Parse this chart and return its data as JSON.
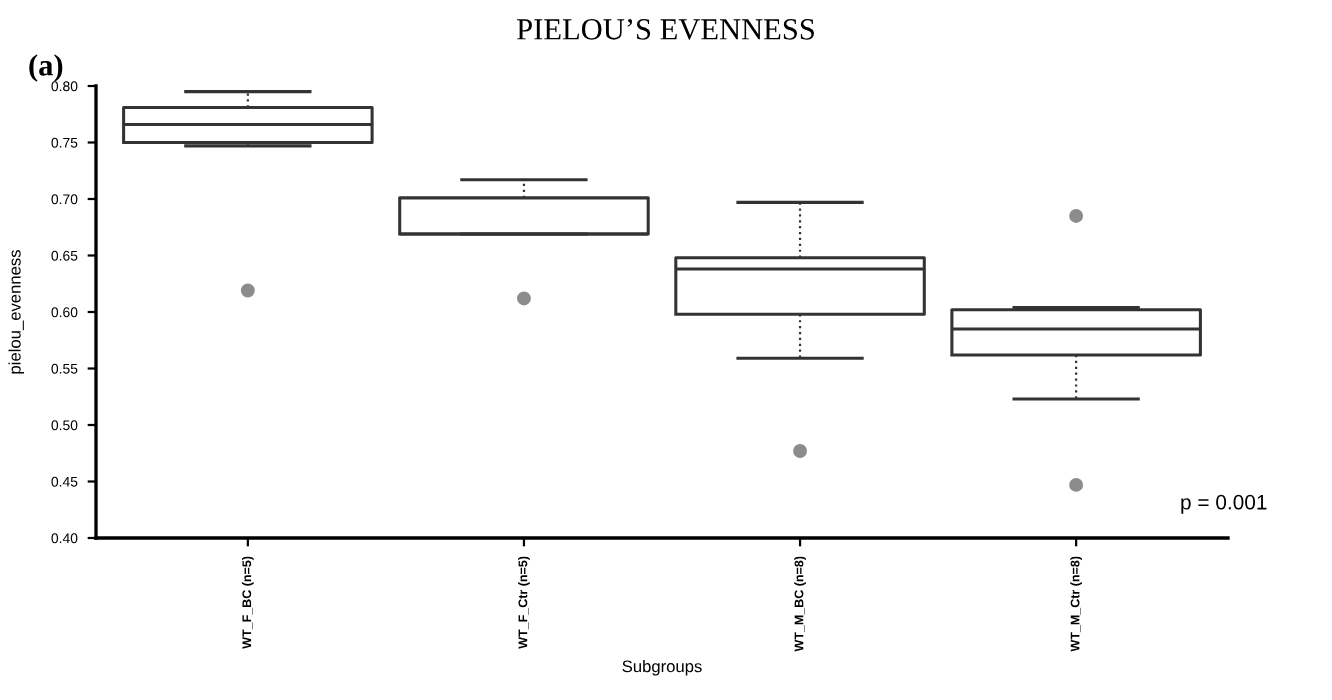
{
  "chart_data": {
    "type": "box",
    "title": "PIELOU’S EVENNESS",
    "xlabel": "Subgroups",
    "ylabel": "pielou_evenness",
    "categories": [
      "WT_F_BC (n=5)",
      "WT_F_Ctr (n=5)",
      "WT_M_BC (n=8)",
      "WT_M_Ctr (n=8)"
    ],
    "boxes": [
      {
        "low": 0.747,
        "q1": 0.75,
        "median": 0.766,
        "q3": 0.781,
        "high": 0.795,
        "outliers": [
          0.619
        ]
      },
      {
        "low": 0.669,
        "q1": 0.669,
        "median": 0.669,
        "q3": 0.701,
        "high": 0.717,
        "outliers": [
          0.612
        ]
      },
      {
        "low": 0.559,
        "q1": 0.598,
        "median": 0.638,
        "q3": 0.648,
        "high": 0.697,
        "outliers": [
          0.477
        ]
      },
      {
        "low": 0.523,
        "q1": 0.562,
        "median": 0.585,
        "q3": 0.602,
        "high": 0.604,
        "outliers": [
          0.685,
          0.447
        ]
      }
    ],
    "color": "#333333",
    "ylim": [
      0.4,
      0.8
    ],
    "yticks": [
      {
        "value": 0.4,
        "label": "0.40"
      },
      0.45,
      {
        "value": 0.5,
        "label": "0.50"
      },
      0.55,
      {
        "value": 0.6,
        "label": "0.60"
      },
      0.65,
      {
        "value": 0.7,
        "label": "0.70"
      },
      0.75,
      {
        "value": 0.8,
        "label": "0.80"
      }
    ],
    "grid": false,
    "annotations": [
      "(a)",
      "p = 0.001"
    ]
  }
}
